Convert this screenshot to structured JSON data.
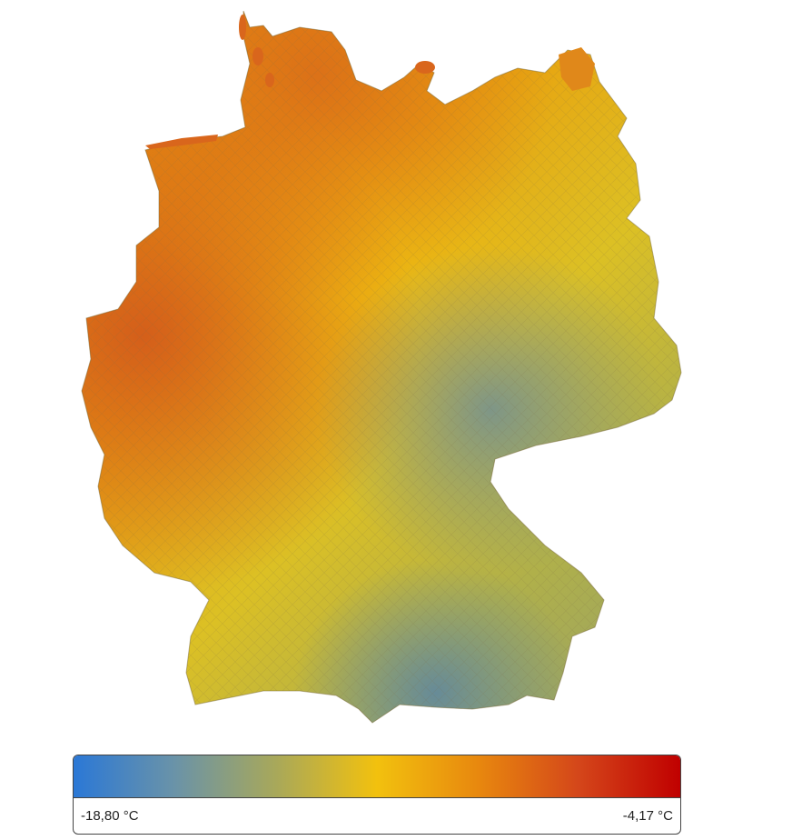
{
  "map": {
    "region": "Germany",
    "fill": "choropleth"
  },
  "legend": {
    "min_label": "-18,80 °C",
    "max_label": "-4,17 °C",
    "min_value": -18.8,
    "max_value": -4.17,
    "colors": [
      "#2b78d6",
      "#6a93a8",
      "#a8a85a",
      "#f2c10e",
      "#e8880e",
      "#d4461a",
      "#c00000"
    ]
  }
}
